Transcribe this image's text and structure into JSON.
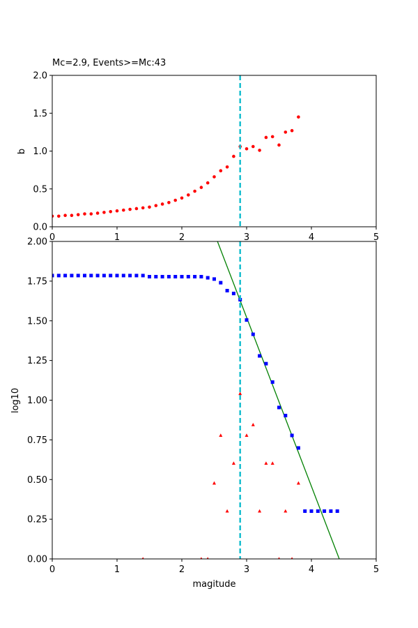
{
  "chart_data": [
    {
      "type": "scatter",
      "title": "Mc=2.9, Events>=Mc:43",
      "xlabel": "",
      "ylabel": "b",
      "xlim": [
        0,
        5
      ],
      "ylim": [
        0,
        2
      ],
      "xticks": [
        0,
        1,
        2,
        3,
        4,
        5
      ],
      "yticks": [
        0.0,
        0.5,
        1.0,
        1.5,
        2.0
      ],
      "tick_labels_x": [
        "0",
        "1",
        "2",
        "3",
        "4",
        "5"
      ],
      "tick_labels_y": [
        "0.0",
        "0.5",
        "1.0",
        "1.5",
        "2.0"
      ],
      "grid": false,
      "vline": {
        "x": 2.9,
        "color": "#17becf",
        "style": "dashed"
      },
      "series": [
        {
          "marker": "circle",
          "color": "#ff0000",
          "x": [
            0.0,
            0.1,
            0.2,
            0.3,
            0.4,
            0.5,
            0.6,
            0.7,
            0.8,
            0.9,
            1.0,
            1.1,
            1.2,
            1.3,
            1.4,
            1.5,
            1.6,
            1.7,
            1.8,
            1.9,
            2.0,
            2.1,
            2.2,
            2.3,
            2.4,
            2.5,
            2.6,
            2.7,
            2.8,
            2.9,
            3.0,
            3.1,
            3.2,
            3.3,
            3.4,
            3.5,
            3.6,
            3.7,
            3.8
          ],
          "y": [
            0.14,
            0.14,
            0.15,
            0.15,
            0.16,
            0.17,
            0.17,
            0.18,
            0.19,
            0.2,
            0.21,
            0.22,
            0.23,
            0.24,
            0.25,
            0.26,
            0.28,
            0.3,
            0.32,
            0.35,
            0.38,
            0.42,
            0.47,
            0.52,
            0.58,
            0.66,
            0.74,
            0.79,
            0.93,
            1.06,
            1.03,
            1.06,
            1.01,
            1.18,
            1.19,
            1.08,
            1.25,
            1.27,
            1.45
          ]
        }
      ]
    },
    {
      "type": "scatter",
      "title": "",
      "xlabel": "magitude",
      "ylabel": "log10",
      "xlim": [
        0,
        5
      ],
      "ylim": [
        0,
        2
      ],
      "xticks": [
        0,
        1,
        2,
        3,
        4,
        5
      ],
      "yticks": [
        0.0,
        0.25,
        0.5,
        0.75,
        1.0,
        1.25,
        1.5,
        1.75,
        2.0
      ],
      "tick_labels_x": [
        "0",
        "1",
        "2",
        "3",
        "4",
        "5"
      ],
      "tick_labels_y": [
        "0.00",
        "0.25",
        "0.50",
        "0.75",
        "1.00",
        "1.25",
        "1.50",
        "1.75",
        "2.00"
      ],
      "grid": false,
      "vline": {
        "x": 2.9,
        "color": "#17becf",
        "style": "dashed"
      },
      "fit_line": {
        "color": "#008000",
        "x": [
          2.55,
          4.43
        ],
        "y": [
          2.0,
          0.0
        ]
      },
      "series": [
        {
          "marker": "square",
          "color": "#0000ff",
          "x": [
            0.0,
            0.1,
            0.2,
            0.3,
            0.4,
            0.5,
            0.6,
            0.7,
            0.8,
            0.9,
            1.0,
            1.1,
            1.2,
            1.3,
            1.4,
            1.5,
            1.6,
            1.7,
            1.8,
            1.9,
            2.0,
            2.1,
            2.2,
            2.3,
            2.4,
            2.5,
            2.6,
            2.7,
            2.8,
            2.9,
            3.0,
            3.1,
            3.2,
            3.3,
            3.4,
            3.5,
            3.6,
            3.7,
            3.8,
            3.9,
            4.0,
            4.1,
            4.2,
            4.3,
            4.4
          ],
          "y": [
            1.785,
            1.785,
            1.785,
            1.785,
            1.785,
            1.785,
            1.785,
            1.785,
            1.785,
            1.785,
            1.785,
            1.785,
            1.785,
            1.785,
            1.785,
            1.778,
            1.778,
            1.778,
            1.778,
            1.778,
            1.778,
            1.778,
            1.778,
            1.778,
            1.771,
            1.763,
            1.74,
            1.69,
            1.672,
            1.633,
            1.505,
            1.415,
            1.279,
            1.23,
            1.114,
            0.954,
            0.903,
            0.778,
            0.699,
            0.301,
            0.301,
            0.301,
            0.301,
            0.301,
            0.301
          ]
        },
        {
          "marker": "triangle",
          "color": "#ff0000",
          "x": [
            1.4,
            2.3,
            2.4,
            2.5,
            2.6,
            2.7,
            2.8,
            2.9,
            3.0,
            3.1,
            3.2,
            3.3,
            3.4,
            3.5,
            3.6,
            3.7,
            3.8
          ],
          "y": [
            0.0,
            0.0,
            0.0,
            0.477,
            0.778,
            0.301,
            0.602,
            1.041,
            0.778,
            0.845,
            0.301,
            0.602,
            0.602,
            0.0,
            0.301,
            0.0,
            0.477
          ]
        }
      ]
    }
  ]
}
